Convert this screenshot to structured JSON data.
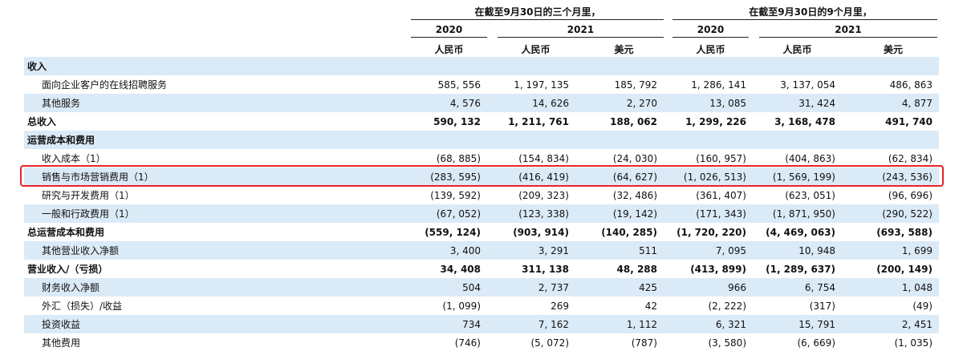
{
  "header": {
    "group1_title": "在截至9月30日的三个月里，",
    "group2_title": "在截至9月30日的9个月里，",
    "years": [
      "2020",
      "2021",
      "2020",
      "2021"
    ],
    "currencies": [
      "人民币",
      "人民币",
      "美元",
      "人民币",
      "人民币",
      "美元"
    ]
  },
  "rows": [
    {
      "label": "收入",
      "bold": true,
      "indent": false,
      "values": [
        "",
        "",
        "",
        "",
        "",
        ""
      ]
    },
    {
      "label": "面向企业客户的在线招聘服务",
      "bold": false,
      "indent": true,
      "values": [
        "585, 556",
        "1, 197, 135",
        "185, 792",
        "1, 286, 141",
        "3, 137, 054",
        "486, 863"
      ]
    },
    {
      "label": "其他服务",
      "bold": false,
      "indent": true,
      "values": [
        "4, 576",
        "14, 626",
        "2, 270",
        "13, 085",
        "31, 424",
        "4, 877"
      ]
    },
    {
      "label": "总收入",
      "bold": true,
      "indent": false,
      "values": [
        "590, 132",
        "1, 211, 761",
        "188, 062",
        "1, 299, 226",
        "3, 168, 478",
        "491, 740"
      ]
    },
    {
      "label": "运营成本和费用",
      "bold": true,
      "indent": false,
      "values": [
        "",
        "",
        "",
        "",
        "",
        ""
      ]
    },
    {
      "label": "收入成本（1）",
      "bold": false,
      "indent": true,
      "values": [
        "(68, 885)",
        "(154, 834)",
        "(24, 030)",
        "(160, 957)",
        "(404, 863)",
        "(62, 834)"
      ]
    },
    {
      "label": "销售与市场营销费用（1）",
      "bold": false,
      "indent": true,
      "values": [
        "(283, 595)",
        "(416, 419)",
        "(64, 627)",
        "(1, 026, 513)",
        "(1, 569, 199)",
        "(243, 536)"
      ]
    },
    {
      "label": "研究与开发费用（1）",
      "bold": false,
      "indent": true,
      "values": [
        "(139, 592)",
        "(209, 323)",
        "(32, 486)",
        "(361, 407)",
        "(623, 051)",
        "(96, 696)"
      ]
    },
    {
      "label": "一般和行政费用（1）",
      "bold": false,
      "indent": true,
      "values": [
        "(67, 052)",
        "(123, 338)",
        "(19, 142)",
        "(171, 343)",
        "(1, 871, 950)",
        "(290, 522)"
      ]
    },
    {
      "label": "总运营成本和费用",
      "bold": true,
      "indent": false,
      "values": [
        "(559, 124)",
        "(903, 914)",
        "(140, 285)",
        "(1, 720, 220)",
        "(4, 469, 063)",
        "(693, 588)"
      ]
    },
    {
      "label": "其他营业收入净额",
      "bold": false,
      "indent": true,
      "values": [
        "3, 400",
        "3, 291",
        "511",
        "7, 095",
        "10, 948",
        "1, 699"
      ]
    },
    {
      "label": "营业收入/（亏损）",
      "bold": true,
      "indent": false,
      "values": [
        "34, 408",
        "311, 138",
        "48, 288",
        "(413, 899)",
        "(1, 289, 637)",
        "(200, 149)"
      ]
    },
    {
      "label": "财务收入净额",
      "bold": false,
      "indent": true,
      "values": [
        "504",
        "2, 737",
        "425",
        "966",
        "6, 754",
        "1, 048"
      ]
    },
    {
      "label": "外汇（损失）/收益",
      "bold": false,
      "indent": true,
      "values": [
        "(1, 099)",
        "269",
        "42",
        "(2, 222)",
        "(317)",
        "(49)"
      ]
    },
    {
      "label": "投资收益",
      "bold": false,
      "indent": true,
      "values": [
        "734",
        "7, 162",
        "1, 112",
        "6, 321",
        "15, 791",
        "2, 451"
      ]
    },
    {
      "label": "其他费用",
      "bold": false,
      "indent": true,
      "values": [
        "(746)",
        "(5, 072)",
        "(787)",
        "(3, 580)",
        "(6, 669)",
        "(1, 035)"
      ]
    }
  ],
  "highlight_row": "销售与市场营销费用（1）",
  "colors": {
    "shade": "#dbeaf7",
    "highlight_border": "#e8232a"
  }
}
